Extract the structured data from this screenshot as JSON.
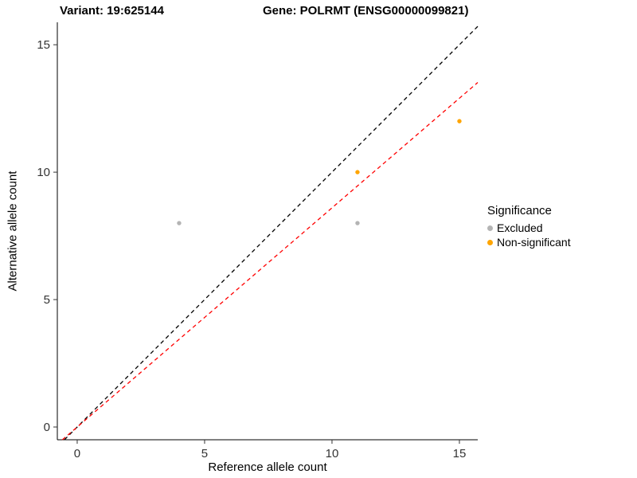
{
  "titles": {
    "variant": "Variant: 19:625144",
    "gene": "Gene: POLRMT (ENSG00000099821)"
  },
  "axes": {
    "x_label": "Reference allele count",
    "y_label": "Alternative allele count"
  },
  "legend": {
    "title": "Significance",
    "items": [
      {
        "label": "Excluded",
        "color": "#b4b4b4"
      },
      {
        "label": "Non-significant",
        "color": "#ffa500"
      }
    ]
  },
  "chart_data": {
    "type": "scatter",
    "title": "Variant: 19:625144  Gene: POLRMT (ENSG00000099821)",
    "xlabel": "Reference allele count",
    "ylabel": "Alternative allele count",
    "xlim": [
      -0.78,
      15.72
    ],
    "ylim": [
      -0.5,
      15.88
    ],
    "x_ticks": [
      0,
      5,
      10,
      15
    ],
    "y_ticks": [
      0,
      5,
      10,
      15
    ],
    "grid": false,
    "legend_position": "right",
    "series": [
      {
        "name": "Excluded",
        "color": "#b4b4b4",
        "points": [
          {
            "x": 4,
            "y": 8
          },
          {
            "x": 11,
            "y": 8
          }
        ]
      },
      {
        "name": "Non-significant",
        "color": "#ffa500",
        "points": [
          {
            "x": 11,
            "y": 10
          },
          {
            "x": 15,
            "y": 12
          }
        ]
      }
    ],
    "lines": [
      {
        "name": "identity-line",
        "color": "#000000",
        "dashed": true,
        "slope": 1.0,
        "intercept": 0
      },
      {
        "name": "expected-ratio-line",
        "color": "#ff0000",
        "dashed": true,
        "slope": 0.86,
        "intercept": 0
      }
    ]
  }
}
